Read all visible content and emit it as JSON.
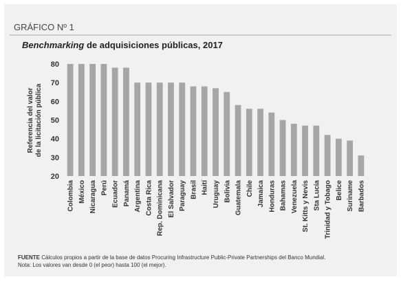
{
  "header": {
    "label": "GRÁFICO Nº 1"
  },
  "chart_data": {
    "type": "bar",
    "title_emphasis": "Benchmarking",
    "title": "de adquisiciones públicas, 2017",
    "y_label": [
      "Referencia del valor",
      "de la licitación pública"
    ],
    "categories": [
      "Colombia",
      "México",
      "Nicaragua",
      "Perú",
      "Ecuador",
      "Panamá",
      "Argentina",
      "Costa Rica",
      "Rep. Dominicana",
      "El Salvador",
      "Paraguay",
      "Brasil",
      "Haití",
      "Uruguay",
      "Bolivia",
      "Guatemala",
      "Chile",
      "Jamaica",
      "Honduras",
      "Bahamas",
      "Venezuela",
      "St. Kitts y Nevis",
      "Sta Lucía",
      "Trinidad y Tobago",
      "Belice",
      "Suriname",
      "Barbados"
    ],
    "values": [
      80,
      80,
      80,
      80,
      78,
      78,
      70,
      70,
      70,
      70,
      70,
      68,
      68,
      67,
      65,
      58,
      56,
      56,
      54,
      50,
      48,
      47,
      47,
      42,
      40,
      39,
      31
    ],
    "color": "#a6a6a6",
    "ylim": [
      20,
      80
    ],
    "yticks": [
      20,
      30,
      40,
      50,
      60,
      70,
      80
    ],
    "grid": false
  },
  "footer": {
    "source_label": "FUENTE",
    "source": "Cálculos propios a partir de la base de datos Procuring Infrastructure Public-Private Partnerships del Banco Mundial.",
    "note": "Nota: Los valores van desde 0 (el peor) hasta 100 (el mejor)."
  }
}
